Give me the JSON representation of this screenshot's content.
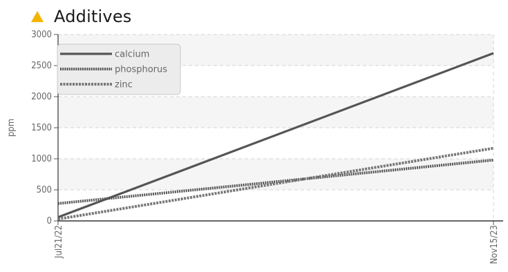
{
  "header": {
    "title": "Additives",
    "icon": "warning-triangle-icon",
    "icon_color": "#f5b400"
  },
  "chart_data": {
    "type": "line",
    "title": "Additives",
    "ylabel": "ppm",
    "xlabel": "",
    "x": [
      "Jul21/22",
      "Nov15/23"
    ],
    "ylim": [
      0,
      3000
    ],
    "yticks": [
      0,
      500,
      1000,
      1500,
      2000,
      2500,
      3000
    ],
    "grid": true,
    "legend_position": "top-left",
    "series": [
      {
        "name": "calcium",
        "values": [
          60,
          2700
        ],
        "color": "#555555",
        "style": "solid"
      },
      {
        "name": "phosphorus",
        "values": [
          280,
          980
        ],
        "color": "#555555",
        "style": "dotted"
      },
      {
        "name": "zinc",
        "values": [
          30,
          1170
        ],
        "color": "#777777",
        "style": "dashed"
      }
    ]
  }
}
